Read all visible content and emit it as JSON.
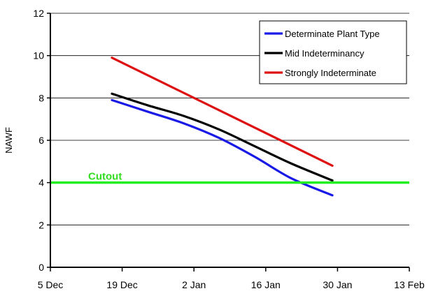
{
  "chart_data": {
    "type": "line",
    "title": "",
    "xlabel": "",
    "ylabel": "NAWF",
    "x_ticks": [
      "5 Dec",
      "19 Dec",
      "2 Jan",
      "16 Jan",
      "30 Jan",
      "13 Feb"
    ],
    "xlim": [
      "5 Dec",
      "13 Feb"
    ],
    "ylim": [
      0,
      12
    ],
    "y_ticks": [
      0,
      2,
      4,
      6,
      8,
      10,
      12
    ],
    "grid": "horizontal",
    "legend_position": "top-right",
    "series": [
      {
        "name": "Determinate Plant Type",
        "color": "#1a1ae6",
        "points": [
          {
            "x": "17 Dec",
            "y": 7.9
          },
          {
            "x": "24 Dec",
            "y": 7.35
          },
          {
            "x": "31 Dec",
            "y": 6.8
          },
          {
            "x": "7 Jan",
            "y": 6.1
          },
          {
            "x": "14 Jan",
            "y": 5.2
          },
          {
            "x": "21 Jan",
            "y": 4.2
          },
          {
            "x": "29 Jan",
            "y": 3.4
          }
        ]
      },
      {
        "name": "Mid Indeterminancy",
        "color": "#000000",
        "points": [
          {
            "x": "17 Dec",
            "y": 8.2
          },
          {
            "x": "24 Dec",
            "y": 7.65
          },
          {
            "x": "31 Dec",
            "y": 7.15
          },
          {
            "x": "7 Jan",
            "y": 6.5
          },
          {
            "x": "14 Jan",
            "y": 5.7
          },
          {
            "x": "21 Jan",
            "y": 4.9
          },
          {
            "x": "29 Jan",
            "y": 4.1
          }
        ]
      },
      {
        "name": "Strongly Indeterminate",
        "color": "#dd1111",
        "points": [
          {
            "x": "17 Dec",
            "y": 9.9
          },
          {
            "x": "29 Jan",
            "y": 4.8
          }
        ]
      }
    ],
    "annotations": [
      {
        "type": "hline",
        "y": 4,
        "label": "Cutout",
        "color": "#22ee22"
      }
    ]
  }
}
